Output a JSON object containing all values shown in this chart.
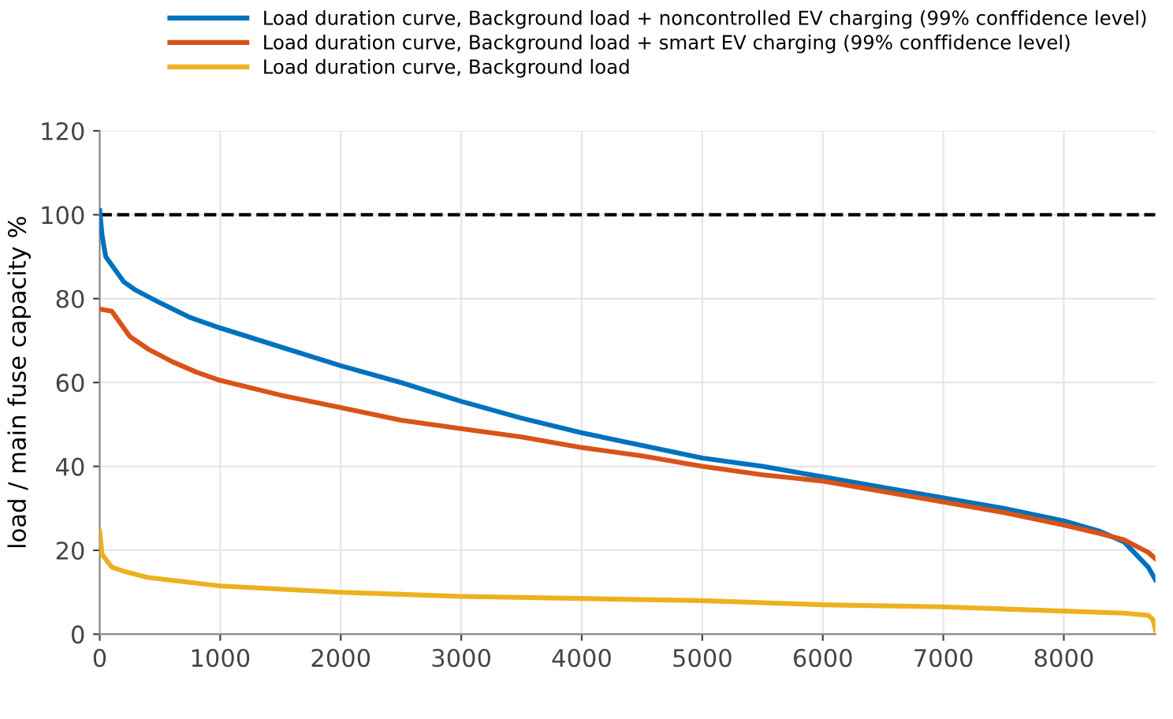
{
  "chart_data": {
    "type": "line",
    "ylabel": "load / main fuse capacity %",
    "xlim": [
      0,
      8760
    ],
    "ylim": [
      0,
      120
    ],
    "xticks": [
      0,
      1000,
      2000,
      3000,
      4000,
      5000,
      6000,
      7000,
      8000
    ],
    "yticks": [
      0,
      20,
      40,
      60,
      80,
      100,
      120
    ],
    "grid": true,
    "legend": "top",
    "line_style": "solid",
    "ref_lines": [
      {
        "axis": "y",
        "value": 100,
        "color": "#000000",
        "line_style": "dashed"
      }
    ],
    "series": [
      {
        "name": "Load duration curve, Background load + noncontrolled EV charging (99% conffidence level)",
        "color": "#0072bd",
        "x": [
          0,
          20,
          50,
          100,
          200,
          300,
          500,
          750,
          1000,
          1500,
          2000,
          2500,
          3000,
          3500,
          4000,
          4500,
          5000,
          5500,
          6000,
          6500,
          7000,
          7500,
          8000,
          8300,
          8500,
          8600,
          8700,
          8760
        ],
        "values": [
          101,
          95,
          90,
          88,
          84,
          82,
          79,
          75.5,
          73,
          68.5,
          64,
          60,
          55.5,
          51.5,
          48,
          45,
          42,
          40,
          37.5,
          35,
          32.5,
          30,
          27,
          24.5,
          22,
          19,
          16,
          13
        ]
      },
      {
        "name": "Load duration curve, Background load + smart EV charging (99% conffidence level)",
        "color": "#d95319",
        "x": [
          0,
          100,
          150,
          250,
          400,
          600,
          800,
          1000,
          1500,
          2000,
          2500,
          3000,
          3500,
          4000,
          4500,
          5000,
          5500,
          6000,
          6500,
          7000,
          7500,
          8000,
          8300,
          8500,
          8700,
          8760
        ],
        "values": [
          77.5,
          77,
          75,
          71,
          68,
          65,
          62.5,
          60.5,
          57,
          54,
          51,
          49,
          47,
          44.5,
          42.5,
          40,
          38,
          36.5,
          34,
          31.5,
          29,
          26,
          24,
          22.5,
          19.5,
          18
        ]
      },
      {
        "name": "Load duration curve, Background load",
        "color": "#edb120",
        "x": [
          0,
          20,
          100,
          200,
          400,
          1000,
          2000,
          3000,
          4000,
          5000,
          6000,
          7000,
          8000,
          8500,
          8700,
          8740,
          8760
        ],
        "values": [
          24.5,
          19,
          16,
          15,
          13.5,
          11.5,
          10,
          9,
          8.5,
          8,
          7,
          6.5,
          5.5,
          5,
          4.5,
          3.5,
          1
        ]
      }
    ]
  }
}
